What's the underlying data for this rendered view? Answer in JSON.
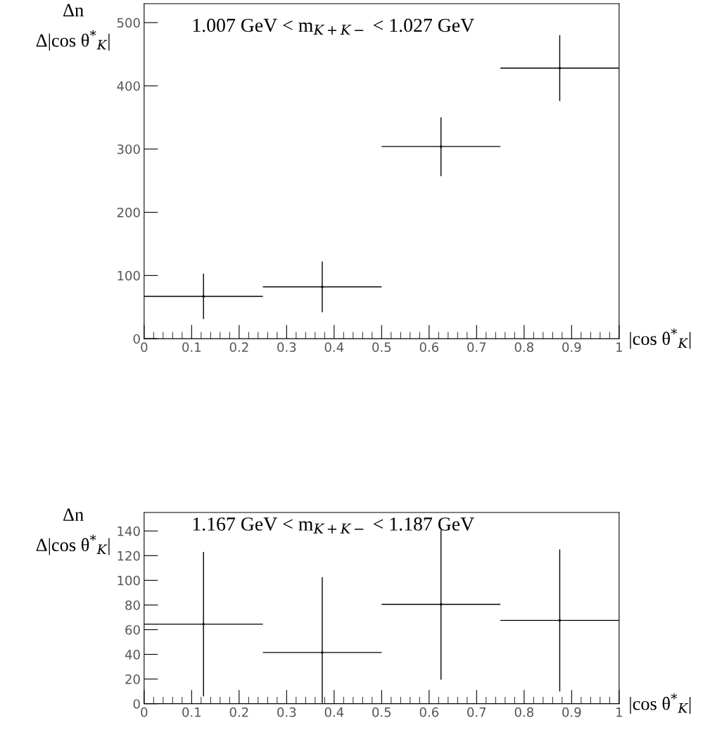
{
  "chart_data": [
    {
      "type": "scatter",
      "xlabel": "|cos θ$^{*}$$_{K}$|",
      "ylabel": "Δn\nΔ|cos θ$^{*}$$_{K}$|",
      "annotations": [
        "1.007 GeV < m$_{K+K−}$ < 1.027 GeV"
      ],
      "x": [
        0.125,
        0.375,
        0.625,
        0.875
      ],
      "marker": "none",
      "series": [
        {
          "color": "#000000",
          "values": [
            67,
            82,
            304,
            428
          ],
          "xerrors": [
            0.125,
            0.125,
            0.125,
            0.125
          ],
          "errors": [
            [
              31,
              103
            ],
            [
              42,
              122
            ],
            [
              257,
              350
            ],
            [
              376,
              480
            ]
          ]
        }
      ],
      "xlim": [
        0,
        1
      ],
      "xticks": [
        0,
        0.1,
        0.2,
        0.3,
        0.4,
        0.5,
        0.6,
        0.7,
        0.8,
        0.9,
        1
      ],
      "ylim": [
        0,
        530
      ],
      "yticks": [
        0,
        100,
        200,
        300,
        400,
        500
      ],
      "grid": false,
      "legend": false
    },
    {
      "type": "scatter",
      "xlabel": "|cos θ$^{*}$$_{K}$|",
      "ylabel": "Δn\nΔ|cos θ$^{*}$$_{K}$|",
      "annotations": [
        "1.167 GeV < m$_{K+K−}$ < 1.187 GeV"
      ],
      "x": [
        0.125,
        0.375,
        0.625,
        0.875
      ],
      "marker": "none",
      "series": [
        {
          "color": "#000000",
          "values": [
            64.5,
            41.5,
            80.5,
            67.5
          ],
          "xerrors": [
            0.125,
            0.125,
            0.125,
            0.125
          ],
          "errors": [
            [
              6,
              123
            ],
            [
              0.5,
              102.5
            ],
            [
              19.5,
              141
            ],
            [
              10,
              125
            ]
          ]
        }
      ],
      "xlim": [
        0,
        1
      ],
      "xticks": [
        0,
        0.1,
        0.2,
        0.3,
        0.4,
        0.5,
        0.6,
        0.7,
        0.8,
        0.9,
        1
      ],
      "ylim": [
        0,
        155
      ],
      "yticks": [
        0,
        20,
        40,
        60,
        80,
        100,
        120,
        140
      ],
      "grid": false,
      "legend": false
    }
  ]
}
